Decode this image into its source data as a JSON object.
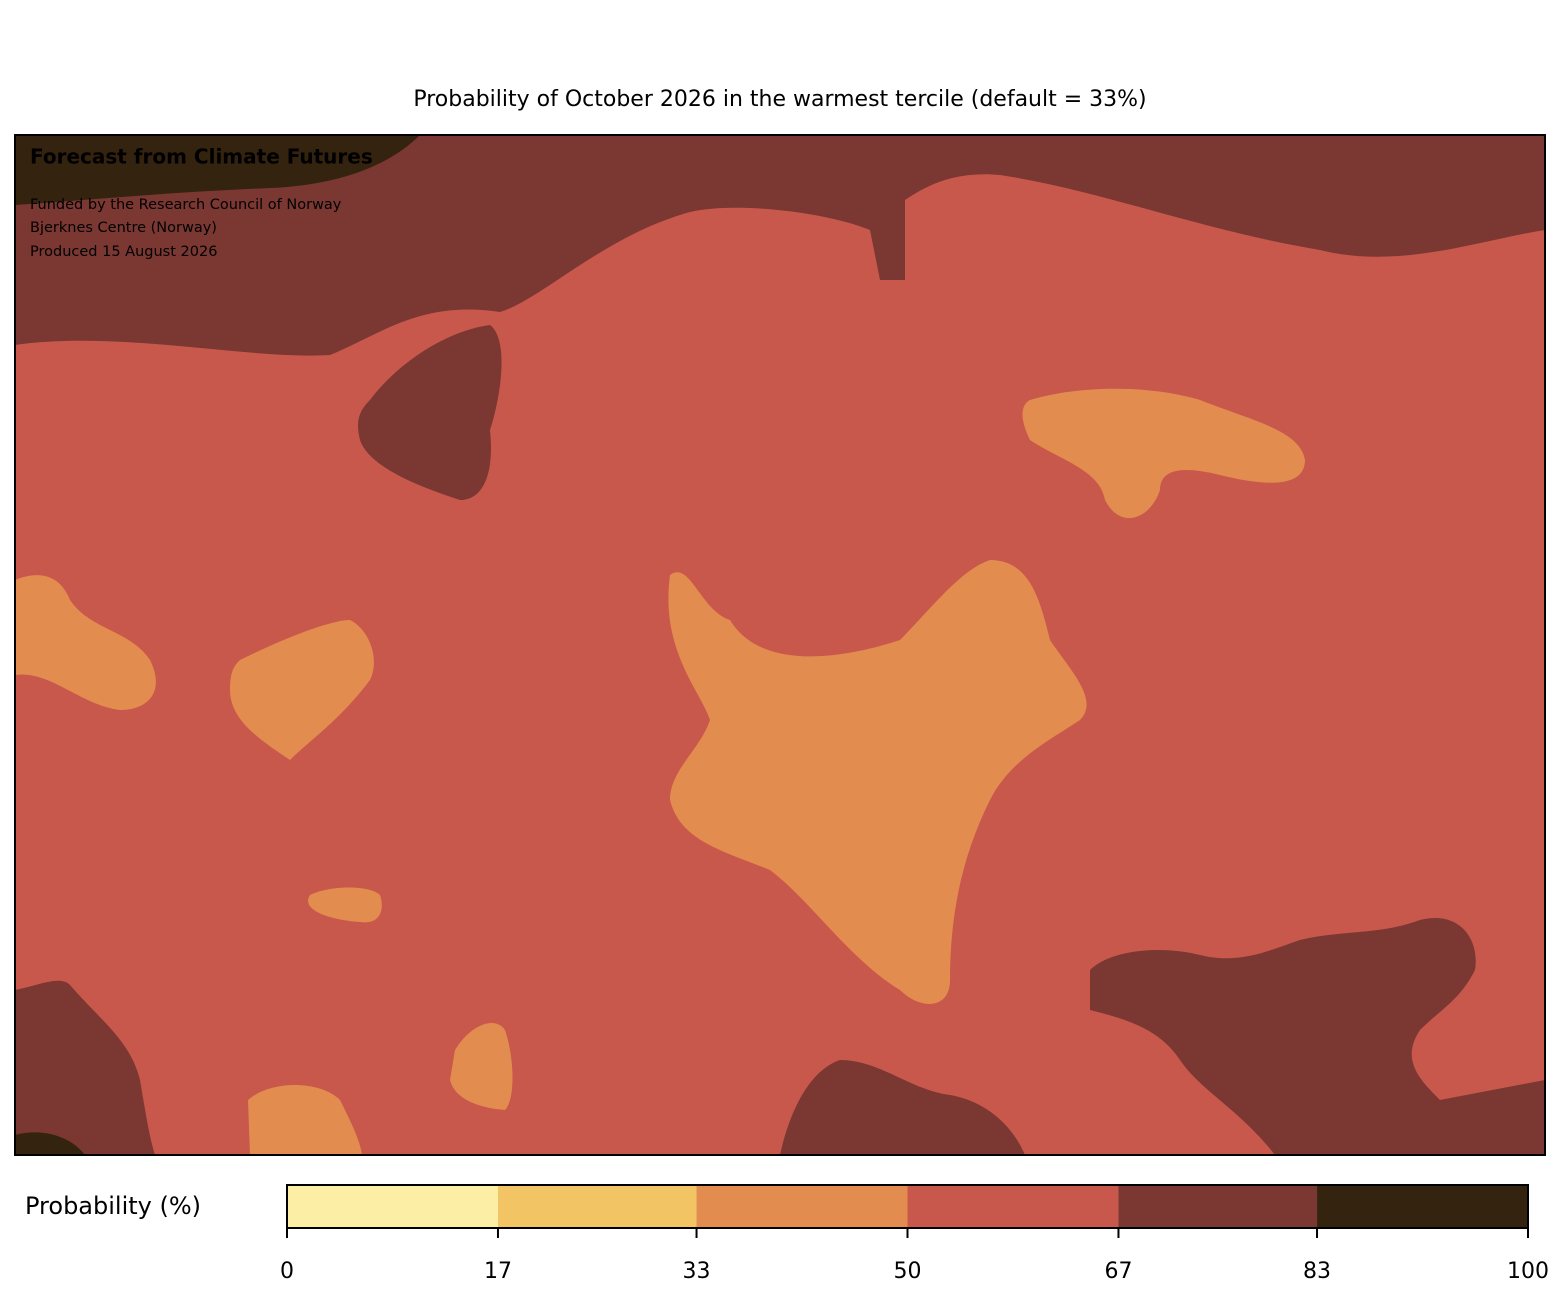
{
  "title": "Probability of October 2026 in the warmest tercile (default = 33%)",
  "annotations": {
    "heading": "Forecast from Climate Futures",
    "lines": [
      "Funded by the Research Council of Norway",
      "Bjerknes Centre (Norway)",
      "Produced 15 August 2026"
    ]
  },
  "colorbar": {
    "label": "Probability (%)",
    "range": [
      0,
      100
    ],
    "ticks": [
      0,
      17,
      33,
      50,
      67,
      83,
      100
    ],
    "colors": [
      "#fcefa5",
      "#f2c464",
      "#e38c50",
      "#c8584b",
      "#7b3732",
      "#33230f"
    ]
  }
}
